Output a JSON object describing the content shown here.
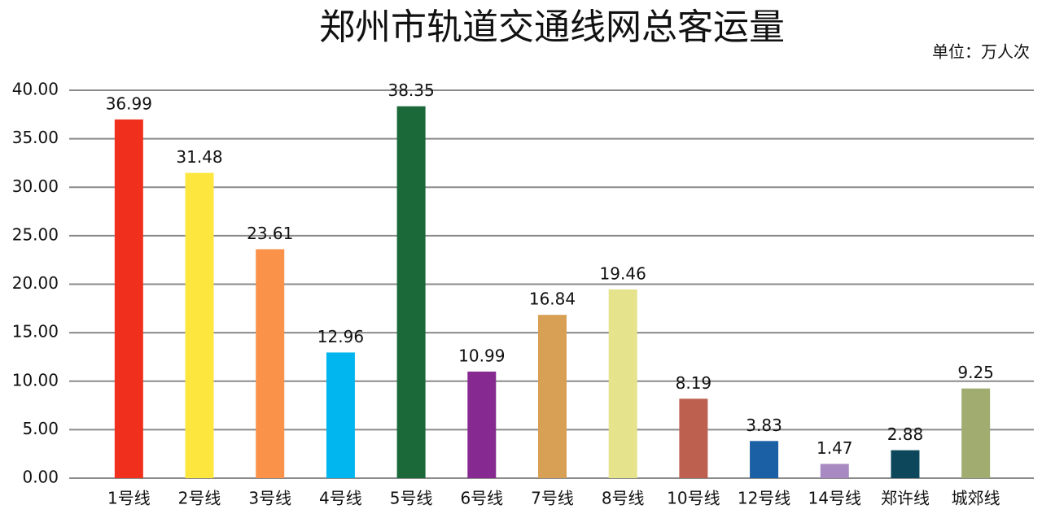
{
  "chart_data": {
    "type": "bar",
    "title": "郑州市轨道交通线网总客运量",
    "unit_label": "单位：万人次",
    "categories": [
      "1号线",
      "2号线",
      "3号线",
      "4号线",
      "5号线",
      "6号线",
      "7号线",
      "8号线",
      "10号线",
      "12号线",
      "14号线",
      "郑许线",
      "城郊线"
    ],
    "values": [
      36.99,
      31.48,
      23.61,
      12.96,
      38.35,
      10.99,
      16.84,
      19.46,
      8.19,
      3.83,
      1.47,
      2.88,
      9.25
    ],
    "colors": [
      "#f0301c",
      "#fde73e",
      "#fb924a",
      "#01b6ef",
      "#1b6838",
      "#862991",
      "#d8a055",
      "#e5e38b",
      "#bd6050",
      "#1b5fa4",
      "#a889c2",
      "#0c475b",
      "#a0ac70"
    ],
    "ylim": [
      0,
      40
    ],
    "yticks": [
      {
        "value": 0,
        "label": "0.00"
      },
      {
        "value": 5,
        "label": "5.00"
      },
      {
        "value": 10,
        "label": "10.00"
      },
      {
        "value": 15,
        "label": "15.00"
      },
      {
        "value": 20,
        "label": "20.00"
      },
      {
        "value": 25,
        "label": "25.00"
      },
      {
        "value": 30,
        "label": "30.00"
      },
      {
        "value": 35,
        "label": "35.00"
      },
      {
        "value": 40,
        "label": "40.00"
      }
    ],
    "grid": true
  }
}
